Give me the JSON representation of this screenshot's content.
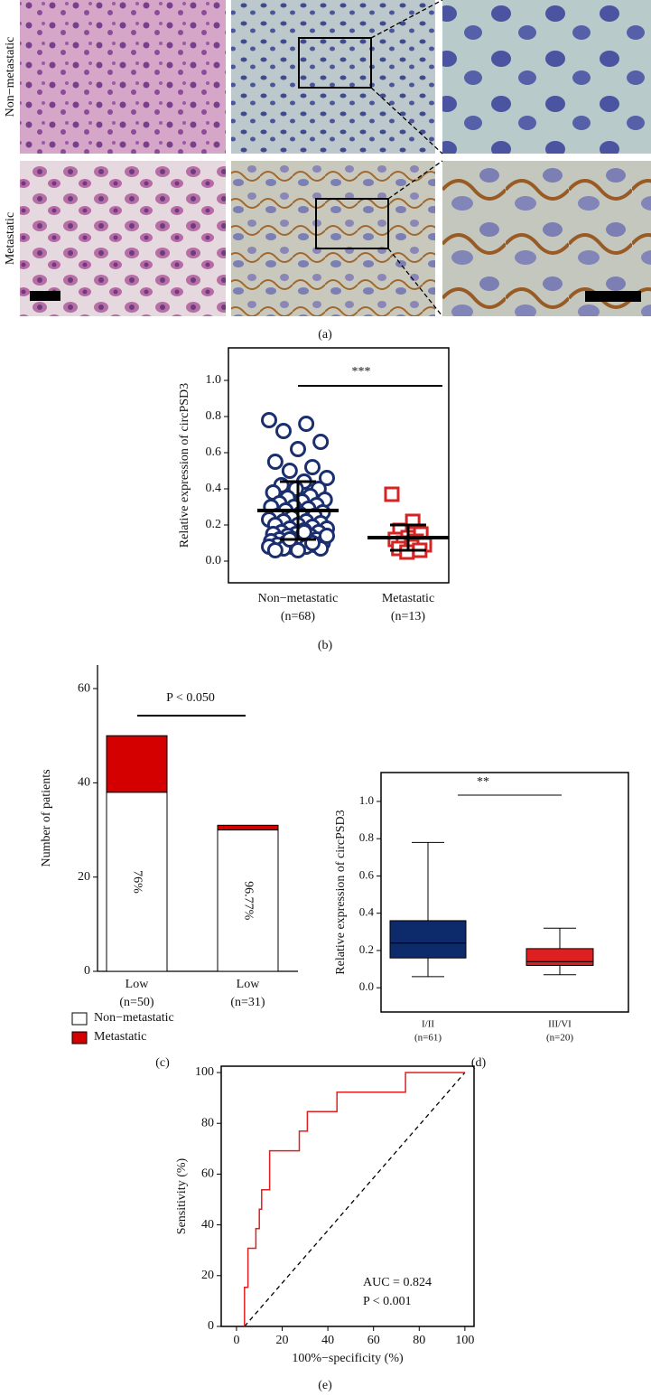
{
  "figure_a": {
    "row_labels": [
      "Non−metastatic",
      "Metastatic"
    ],
    "caption": "(a)"
  },
  "chart_data": [
    {
      "type": "strip",
      "caption": "(b)",
      "ylabel": "Relative expression of circPSD3",
      "categories": [
        "Non−metastatic",
        "Metastatic"
      ],
      "category_notes": [
        "(n=68)",
        "(n=13)"
      ],
      "groups": [
        {
          "color": "#1b2f6e",
          "marker": "circle",
          "mean": 0.28,
          "sd": 0.16,
          "values": [
            0.78,
            0.76,
            0.72,
            0.66,
            0.62,
            0.55,
            0.52,
            0.5,
            0.46,
            0.44,
            0.42,
            0.4,
            0.4,
            0.38,
            0.36,
            0.35,
            0.34,
            0.33,
            0.32,
            0.31,
            0.3,
            0.3,
            0.29,
            0.28,
            0.27,
            0.26,
            0.25,
            0.25,
            0.24,
            0.23,
            0.22,
            0.22,
            0.21,
            0.2,
            0.2,
            0.19,
            0.18,
            0.18,
            0.17,
            0.16,
            0.16,
            0.15,
            0.15,
            0.14,
            0.14,
            0.13,
            0.13,
            0.12,
            0.12,
            0.12,
            0.11,
            0.11,
            0.1,
            0.1,
            0.1,
            0.09,
            0.09,
            0.08,
            0.08,
            0.08,
            0.07,
            0.07,
            0.06,
            0.06,
            0.1,
            0.12,
            0.14,
            0.16
          ]
        },
        {
          "color": "#d42424",
          "marker": "square",
          "mean": 0.13,
          "sd": 0.07,
          "values": [
            0.37,
            0.22,
            0.17,
            0.15,
            0.13,
            0.12,
            0.11,
            0.1,
            0.09,
            0.08,
            0.07,
            0.06,
            0.05
          ]
        }
      ],
      "ylim": [
        -0.12,
        1.18
      ],
      "yticks": [
        {
          "value": 0,
          "label": "0.0"
        },
        0.2,
        0.4,
        0.6,
        0.8,
        {
          "value": 1,
          "label": "1.0"
        }
      ],
      "annotation": "***"
    },
    {
      "type": "stacked_bar",
      "caption": "(c)",
      "ylabel": "Number of patients",
      "categories": [
        "Low",
        "Low"
      ],
      "category_notes": [
        "(n=50)",
        "(n=31)"
      ],
      "series": [
        {
          "name": "Non−metastatic",
          "color": "#ffffff",
          "values": [
            38,
            30
          ],
          "segment_labels": [
            "76%",
            "96.77%"
          ]
        },
        {
          "name": "Metastatic",
          "color": "#d40000",
          "values": [
            12,
            1
          ]
        }
      ],
      "ylim": [
        0,
        65
      ],
      "yticks": [
        0,
        20,
        40,
        60
      ],
      "annotation": "P < 0.050"
    },
    {
      "type": "box",
      "caption": "(d)",
      "ylabel": "Relative expression of circPSD3",
      "categories": [
        "I/II",
        "III/VI"
      ],
      "category_notes": [
        "(n=61)",
        "(n=20)"
      ],
      "boxes": [
        {
          "color": "#0d2a6b",
          "min": 0.06,
          "q1": 0.16,
          "median": 0.24,
          "q3": 0.36,
          "max": 0.78
        },
        {
          "color": "#e02020",
          "min": 0.07,
          "q1": 0.12,
          "median": 0.14,
          "q3": 0.21,
          "max": 0.32
        }
      ],
      "ylim": [
        -0.13,
        1.155
      ],
      "yticks": [
        {
          "value": 0,
          "label": "0.0"
        },
        0.2,
        0.4,
        0.6,
        0.8,
        {
          "value": 1,
          "label": "1.0"
        }
      ],
      "annotation": "**"
    },
    {
      "type": "line",
      "caption": "(e)",
      "xlabel": "100%−specificity (%)",
      "ylabel": "Sensitivity (%)",
      "x": [
        3.5,
        3.5,
        5,
        5,
        8.5,
        8.5,
        10,
        10,
        11,
        11,
        14.5,
        14.5,
        27.5,
        27.5,
        31,
        31,
        44,
        44,
        74,
        74,
        100
      ],
      "series": [
        {
          "color": "#e02020",
          "values": [
            0,
            15.4,
            15.4,
            30.8,
            30.8,
            38.5,
            38.5,
            46.2,
            46.2,
            53.8,
            53.8,
            69.2,
            69.2,
            76.9,
            76.9,
            84.6,
            84.6,
            92.3,
            92.3,
            100,
            100
          ]
        }
      ],
      "xlim": [
        -6.7,
        104
      ],
      "ylim": [
        0,
        102.5
      ],
      "xticks": [
        0,
        20,
        40,
        60,
        80,
        100
      ],
      "yticks": [
        0,
        20,
        40,
        60,
        80,
        100
      ],
      "annotations": [
        "AUC = 0.824",
        "P < 0.001"
      ]
    }
  ]
}
